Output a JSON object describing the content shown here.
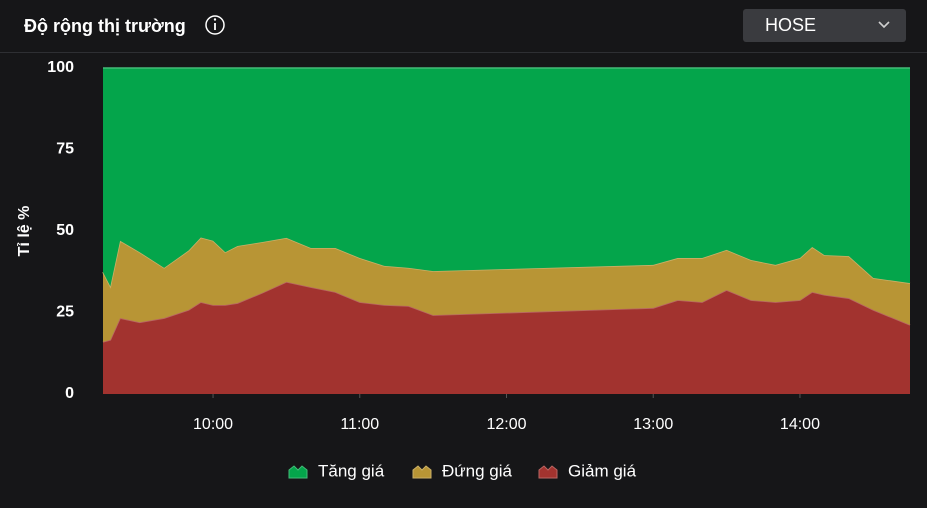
{
  "header": {
    "title": "Độ rộng thị trường",
    "exchange": "HOSE"
  },
  "chart_data": {
    "type": "stacked_area",
    "y_label": "Tỉ lệ %",
    "x": [
      "09:15",
      "09:18",
      "09:22",
      "09:30",
      "09:40",
      "09:50",
      "09:55",
      "10:00",
      "10:05",
      "10:10",
      "10:20",
      "10:30",
      "10:40",
      "10:50",
      "11:00",
      "11:10",
      "11:20",
      "11:30",
      "13:00",
      "13:10",
      "13:20",
      "13:30",
      "13:40",
      "13:50",
      "14:00",
      "14:05",
      "14:10",
      "14:20",
      "14:30",
      "14:45"
    ],
    "xlim": [
      "09:15",
      "14:45"
    ],
    "xticks": [
      "10:00",
      "11:00",
      "12:00",
      "13:00",
      "14:00"
    ],
    "ylim": [
      0,
      100
    ],
    "yticks": [
      0,
      25,
      50,
      75,
      100
    ],
    "grid": false,
    "series": [
      {
        "name": "Tăng giá",
        "color": "#04a54b",
        "values": [
          62.6,
          67,
          53,
          56.5,
          61.3,
          56,
          52,
          53,
          56.5,
          54.6,
          53.4,
          52.1,
          55.2,
          55.2,
          58.3,
          60.7,
          61.3,
          62.3,
          60.4,
          58.3,
          58.3,
          55.8,
          58.9,
          60.4,
          58.3,
          54.9,
          57.4,
          57.7,
          64.4,
          66
        ]
      },
      {
        "name": "Đứng giá",
        "color": "#b89535",
        "values": [
          21.4,
          16.4,
          23.7,
          21.5,
          15.4,
          18.2,
          19.8,
          19.7,
          16.2,
          17.5,
          15.6,
          13.5,
          12,
          13.5,
          13.5,
          12,
          11.7,
          13.5,
          13.2,
          12.9,
          13.5,
          12.3,
          12.3,
          11.4,
          12.9,
          13.8,
          12.2,
          12.9,
          9.8,
          12.8
        ]
      },
      {
        "name": "Giảm giá",
        "color": "#a2332f",
        "values": [
          16,
          16.6,
          23.3,
          22,
          23.3,
          25.8,
          28.2,
          27.3,
          27.3,
          27.9,
          31,
          34.4,
          32.8,
          31.3,
          28.2,
          27.3,
          27,
          24.2,
          26.4,
          28.8,
          28.2,
          31.9,
          28.8,
          28.2,
          28.8,
          31.3,
          30.4,
          29.4,
          25.8,
          21.2
        ]
      }
    ]
  }
}
